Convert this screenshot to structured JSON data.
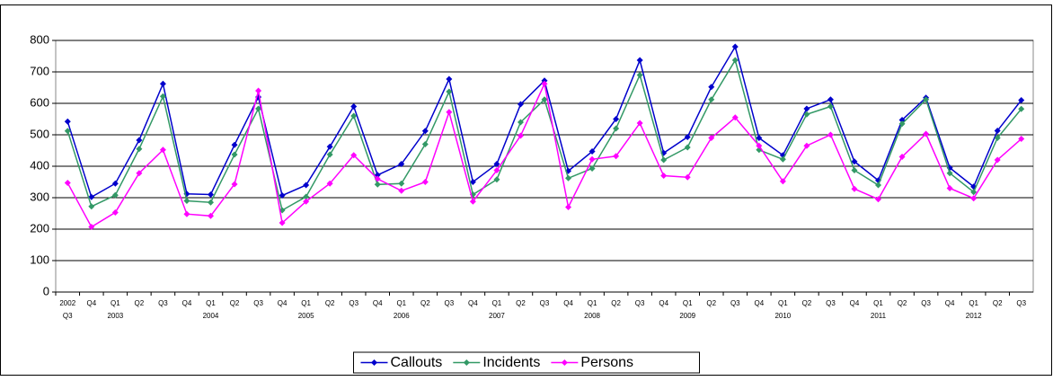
{
  "chart_data": {
    "type": "line",
    "categories": [
      "Q3",
      "Q4",
      "Q1",
      "Q2",
      "Q3",
      "Q4",
      "Q1",
      "Q2",
      "Q3",
      "Q4",
      "Q1",
      "Q2",
      "Q3",
      "Q4",
      "Q1",
      "Q2",
      "Q3",
      "Q4",
      "Q1",
      "Q2",
      "Q3",
      "Q4",
      "Q1",
      "Q2",
      "Q3",
      "Q4",
      "Q1",
      "Q2",
      "Q3",
      "Q4",
      "Q1",
      "Q2",
      "Q3",
      "Q4",
      "Q1",
      "Q2",
      "Q3",
      "Q4",
      "Q1",
      "Q2",
      "Q3"
    ],
    "year_labels": [
      "2002",
      null,
      "2003",
      null,
      null,
      null,
      "2004",
      null,
      null,
      null,
      "2005",
      null,
      null,
      null,
      "2006",
      null,
      null,
      null,
      "2007",
      null,
      null,
      null,
      "2008",
      null,
      null,
      null,
      "2009",
      null,
      null,
      null,
      "2010",
      null,
      null,
      null,
      "2011",
      null,
      null,
      null,
      "2012",
      null,
      null
    ],
    "series": [
      {
        "name": "Callouts",
        "color": "#0000cc",
        "values": [
          542,
          302,
          345,
          483,
          662,
          312,
          310,
          468,
          620,
          307,
          340,
          462,
          590,
          372,
          407,
          512,
          677,
          350,
          407,
          597,
          672,
          385,
          447,
          550,
          737,
          442,
          493,
          652,
          780,
          490,
          435,
          583,
          612,
          415,
          355,
          547,
          618,
          395,
          335,
          513,
          610
        ]
      },
      {
        "name": "Incidents",
        "color": "#339966",
        "values": [
          512,
          272,
          308,
          455,
          622,
          290,
          285,
          437,
          583,
          260,
          303,
          437,
          560,
          342,
          345,
          470,
          637,
          310,
          358,
          540,
          612,
          362,
          393,
          520,
          690,
          420,
          460,
          612,
          737,
          452,
          422,
          565,
          590,
          387,
          340,
          535,
          612,
          378,
          318,
          490,
          582
        ]
      },
      {
        "name": "Persons",
        "color": "#ff00ff",
        "values": [
          347,
          207,
          253,
          378,
          452,
          248,
          242,
          343,
          640,
          220,
          288,
          345,
          435,
          360,
          322,
          350,
          572,
          288,
          387,
          497,
          662,
          270,
          422,
          432,
          537,
          370,
          365,
          490,
          555,
          465,
          352,
          465,
          500,
          328,
          295,
          430,
          503,
          330,
          298,
          420,
          487
        ]
      }
    ],
    "ylim": [
      0,
      800
    ],
    "yticks": [
      0,
      100,
      200,
      300,
      400,
      500,
      600,
      700,
      800
    ],
    "grid": true,
    "legend": "bottom"
  }
}
